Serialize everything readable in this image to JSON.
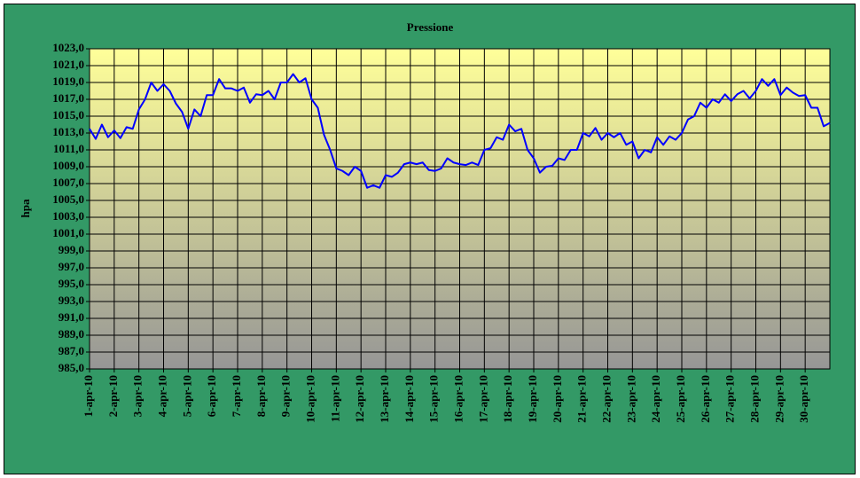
{
  "chart_data": {
    "type": "line",
    "title": "Pressione",
    "y_label": "hpa",
    "xlim": [
      1,
      31
    ],
    "xticks": [
      {
        "value": 1,
        "label": "1-apr-10"
      },
      {
        "value": 2,
        "label": "2-apr-10"
      },
      {
        "value": 3,
        "label": "3-apr-10"
      },
      {
        "value": 4,
        "label": "4-apr-10"
      },
      {
        "value": 5,
        "label": "5-apr-10"
      },
      {
        "value": 6,
        "label": "6-apr-10"
      },
      {
        "value": 7,
        "label": "7-apr-10"
      },
      {
        "value": 8,
        "label": "8-apr-10"
      },
      {
        "value": 9,
        "label": "9-apr-10"
      },
      {
        "value": 10,
        "label": "10-apr-10"
      },
      {
        "value": 11,
        "label": "11-apr-10"
      },
      {
        "value": 12,
        "label": "12-apr-10"
      },
      {
        "value": 13,
        "label": "13-apr-10"
      },
      {
        "value": 14,
        "label": "14-apr-10"
      },
      {
        "value": 15,
        "label": "15-apr-10"
      },
      {
        "value": 16,
        "label": "16-apr-10"
      },
      {
        "value": 17,
        "label": "17-apr-10"
      },
      {
        "value": 18,
        "label": "18-apr-10"
      },
      {
        "value": 19,
        "label": "19-apr-10"
      },
      {
        "value": 20,
        "label": "20-apr-10"
      },
      {
        "value": 21,
        "label": "21-apr-10"
      },
      {
        "value": 22,
        "label": "22-apr-10"
      },
      {
        "value": 23,
        "label": "23-apr-10"
      },
      {
        "value": 24,
        "label": "24-apr-10"
      },
      {
        "value": 25,
        "label": "25-apr-10"
      },
      {
        "value": 26,
        "label": "26-apr-10"
      },
      {
        "value": 27,
        "label": "27-apr-10"
      },
      {
        "value": 28,
        "label": "28-apr-10"
      },
      {
        "value": 29,
        "label": "29-apr-10"
      },
      {
        "value": 30,
        "label": "30-apr-10"
      }
    ],
    "ylim": [
      985,
      1023
    ],
    "yticks": [
      {
        "value": 985,
        "label": "985,0"
      },
      {
        "value": 987,
        "label": "987,0"
      },
      {
        "value": 989,
        "label": "989,0"
      },
      {
        "value": 991,
        "label": "991,0"
      },
      {
        "value": 993,
        "label": "993,0"
      },
      {
        "value": 995,
        "label": "995,0"
      },
      {
        "value": 997,
        "label": "997,0"
      },
      {
        "value": 999,
        "label": "999,0"
      },
      {
        "value": 1001,
        "label": "1001,0"
      },
      {
        "value": 1003,
        "label": "1003,0"
      },
      {
        "value": 1005,
        "label": "1005,0"
      },
      {
        "value": 1007,
        "label": "1007,0"
      },
      {
        "value": 1009,
        "label": "1009,0"
      },
      {
        "value": 1011,
        "label": "1011,0"
      },
      {
        "value": 1013,
        "label": "1013,0"
      },
      {
        "value": 1015,
        "label": "1015,0"
      },
      {
        "value": 1017,
        "label": "1017,0"
      },
      {
        "value": 1019,
        "label": "1019,0"
      },
      {
        "value": 1021,
        "label": "1021,0"
      },
      {
        "value": 1023,
        "label": "1023,0"
      }
    ],
    "grid": true,
    "x": [
      1,
      1.25,
      1.5,
      1.75,
      2,
      2.25,
      2.5,
      2.75,
      3,
      3.25,
      3.5,
      3.75,
      4,
      4.25,
      4.5,
      4.75,
      5,
      5.25,
      5.5,
      5.75,
      6,
      6.25,
      6.5,
      6.75,
      7,
      7.25,
      7.5,
      7.75,
      8,
      8.25,
      8.5,
      8.75,
      9,
      9.25,
      9.5,
      9.75,
      10,
      10.25,
      10.5,
      10.75,
      11,
      11.25,
      11.5,
      11.75,
      12,
      12.25,
      12.5,
      12.75,
      13,
      13.25,
      13.5,
      13.75,
      14,
      14.25,
      14.5,
      14.75,
      15,
      15.25,
      15.5,
      15.75,
      16,
      16.25,
      16.5,
      16.75,
      17,
      17.25,
      17.5,
      17.75,
      18,
      18.25,
      18.5,
      18.75,
      19,
      19.25,
      19.5,
      19.75,
      20,
      20.25,
      20.5,
      20.75,
      21,
      21.25,
      21.5,
      21.75,
      22,
      22.25,
      22.5,
      22.75,
      23,
      23.25,
      23.5,
      23.75,
      24,
      24.25,
      24.5,
      24.75,
      25,
      25.25,
      25.5,
      25.75,
      26,
      26.25,
      26.5,
      26.75,
      27,
      27.25,
      27.5,
      27.75,
      28,
      28.25,
      28.5,
      28.75,
      29,
      29.25,
      29.5,
      29.75,
      30,
      30.25,
      30.5,
      30.75,
      31
    ],
    "series": [
      {
        "color": "#0000ff",
        "values": [
          1013.5,
          1012.3,
          1014,
          1012.5,
          1013.3,
          1012.4,
          1013.7,
          1013.5,
          1015.8,
          1017,
          1019,
          1018,
          1018.8,
          1018,
          1016.5,
          1015.5,
          1013.5,
          1015.8,
          1015,
          1017.5,
          1017.5,
          1019.4,
          1018.3,
          1018.3,
          1018,
          1018.4,
          1016.6,
          1017.6,
          1017.5,
          1018,
          1017,
          1019,
          1019,
          1020,
          1019,
          1019.5,
          1017,
          1016,
          1012.8,
          1011,
          1008.8,
          1008.5,
          1008,
          1009,
          1008.5,
          1006.5,
          1006.8,
          1006.5,
          1008,
          1007.8,
          1008.3,
          1009.3,
          1009.5,
          1009.3,
          1009.5,
          1008.6,
          1008.5,
          1008.8,
          1010,
          1009.5,
          1009.3,
          1009.2,
          1009.5,
          1009.2,
          1011,
          1011.2,
          1012.5,
          1012.2,
          1014,
          1013.2,
          1013.5,
          1011,
          1010,
          1008.3,
          1009,
          1009.1,
          1010,
          1009.8,
          1011,
          1011,
          1013,
          1012.6,
          1013.6,
          1012.2,
          1013,
          1012.5,
          1013,
          1011.6,
          1012,
          1010,
          1011,
          1010.7,
          1012.5,
          1011.6,
          1012.6,
          1012.2,
          1013,
          1014.6,
          1015,
          1016.6,
          1016,
          1017,
          1016.6,
          1017.6,
          1016.8,
          1017.6,
          1018,
          1017.1,
          1018,
          1019.4,
          1018.6,
          1019.4,
          1017.5,
          1018.4,
          1017.8,
          1017.4,
          1017.5,
          1016,
          1016,
          1013.8,
          1014.2
        ]
      }
    ]
  }
}
